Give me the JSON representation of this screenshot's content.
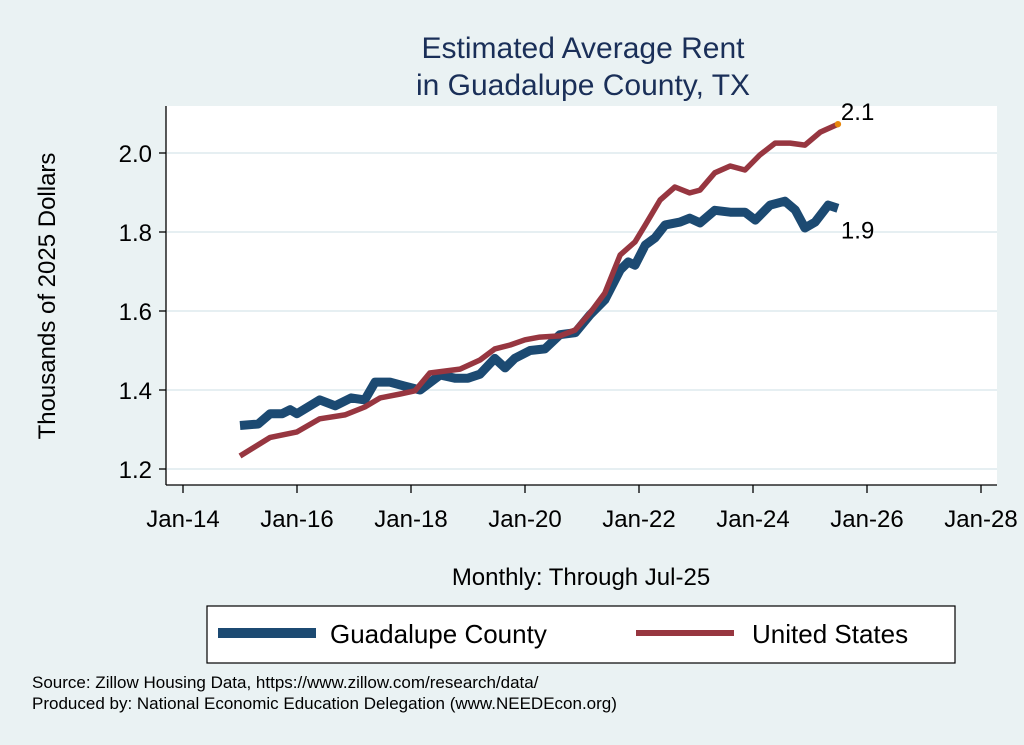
{
  "chart_data": {
    "type": "line",
    "title": [
      "Estimated Average Rent",
      "in Guadalupe County, TX"
    ],
    "xlabel": "Monthly: Through Jul-25",
    "ylabel": "Thousands of 2025 Dollars",
    "xlim": [
      2013.95,
      2028.3
    ],
    "ylim": [
      1.16,
      2.11
    ],
    "x_ticks": [
      {
        "value": 2014,
        "label": "Jan-14"
      },
      {
        "value": 2016,
        "label": "Jan-16"
      },
      {
        "value": 2018,
        "label": "Jan-18"
      },
      {
        "value": 2020,
        "label": "Jan-20"
      },
      {
        "value": 2022,
        "label": "Jan-22"
      },
      {
        "value": 2024,
        "label": "Jan-24"
      },
      {
        "value": 2026,
        "label": "Jan-26"
      },
      {
        "value": 2028,
        "label": "Jan-28"
      }
    ],
    "y_ticks": [
      {
        "value": 1.2,
        "label": "1.2"
      },
      {
        "value": 1.4,
        "label": "1.4"
      },
      {
        "value": 1.6,
        "label": "1.6"
      },
      {
        "value": 1.8,
        "label": "1.8"
      },
      {
        "value": 2.0,
        "label": "2.0"
      }
    ],
    "grid": true,
    "legend_position": "bottom",
    "series": [
      {
        "name": "Guadalupe County",
        "color": "#1c4a72",
        "x": [
          2015.0,
          2015.32,
          2015.53,
          2015.74,
          2015.88,
          2016.0,
          2016.4,
          2016.67,
          2016.95,
          2017.19,
          2017.37,
          2017.63,
          2017.89,
          2018.16,
          2018.51,
          2018.77,
          2019.0,
          2019.21,
          2019.47,
          2019.65,
          2019.82,
          2020.09,
          2020.35,
          2020.61,
          2020.88,
          2021.14,
          2021.4,
          2021.67,
          2021.81,
          2021.93,
          2022.11,
          2022.28,
          2022.46,
          2022.72,
          2022.89,
          2023.07,
          2023.33,
          2023.6,
          2023.86,
          2024.04,
          2024.3,
          2024.56,
          2024.74,
          2024.91,
          2025.09,
          2025.32,
          2025.49
        ],
        "values": [
          1.31,
          1.314,
          1.34,
          1.34,
          1.35,
          1.34,
          1.375,
          1.36,
          1.38,
          1.375,
          1.42,
          1.42,
          1.41,
          1.4,
          1.438,
          1.43,
          1.43,
          1.44,
          1.48,
          1.456,
          1.48,
          1.5,
          1.504,
          1.54,
          1.545,
          1.59,
          1.628,
          1.704,
          1.724,
          1.716,
          1.767,
          1.785,
          1.818,
          1.825,
          1.835,
          1.823,
          1.855,
          1.85,
          1.85,
          1.83,
          1.868,
          1.878,
          1.856,
          1.81,
          1.825,
          1.868,
          1.86
        ]
      },
      {
        "name": "United States",
        "color": "#973640",
        "x": [
          2015.0,
          2015.53,
          2016.0,
          2016.4,
          2016.84,
          2017.19,
          2017.46,
          2017.81,
          2018.07,
          2018.33,
          2018.86,
          2019.21,
          2019.47,
          2019.74,
          2020.0,
          2020.26,
          2020.61,
          2020.88,
          2021.14,
          2021.4,
          2021.67,
          2021.93,
          2022.11,
          2022.37,
          2022.63,
          2022.89,
          2023.07,
          2023.33,
          2023.6,
          2023.86,
          2024.12,
          2024.39,
          2024.65,
          2024.91,
          2025.18,
          2025.49
        ],
        "values": [
          1.233,
          1.28,
          1.294,
          1.327,
          1.337,
          1.357,
          1.38,
          1.39,
          1.398,
          1.443,
          1.453,
          1.476,
          1.504,
          1.514,
          1.527,
          1.534,
          1.537,
          1.552,
          1.595,
          1.645,
          1.742,
          1.775,
          1.818,
          1.881,
          1.914,
          1.899,
          1.906,
          1.95,
          1.967,
          1.957,
          1.995,
          2.025,
          2.025,
          2.02,
          2.053,
          2.073
        ]
      }
    ],
    "annotations": [
      {
        "series": "United States",
        "label": "2.1",
        "marker_color": "#e8860c"
      },
      {
        "series": "Guadalupe County",
        "label": "1.9"
      }
    ],
    "notes": [
      "Source: Zillow Housing Data, https://www.zillow.com/research/data/",
      "Produced by: National Economic Education Delegation (www.NEEDEcon.org)"
    ]
  }
}
